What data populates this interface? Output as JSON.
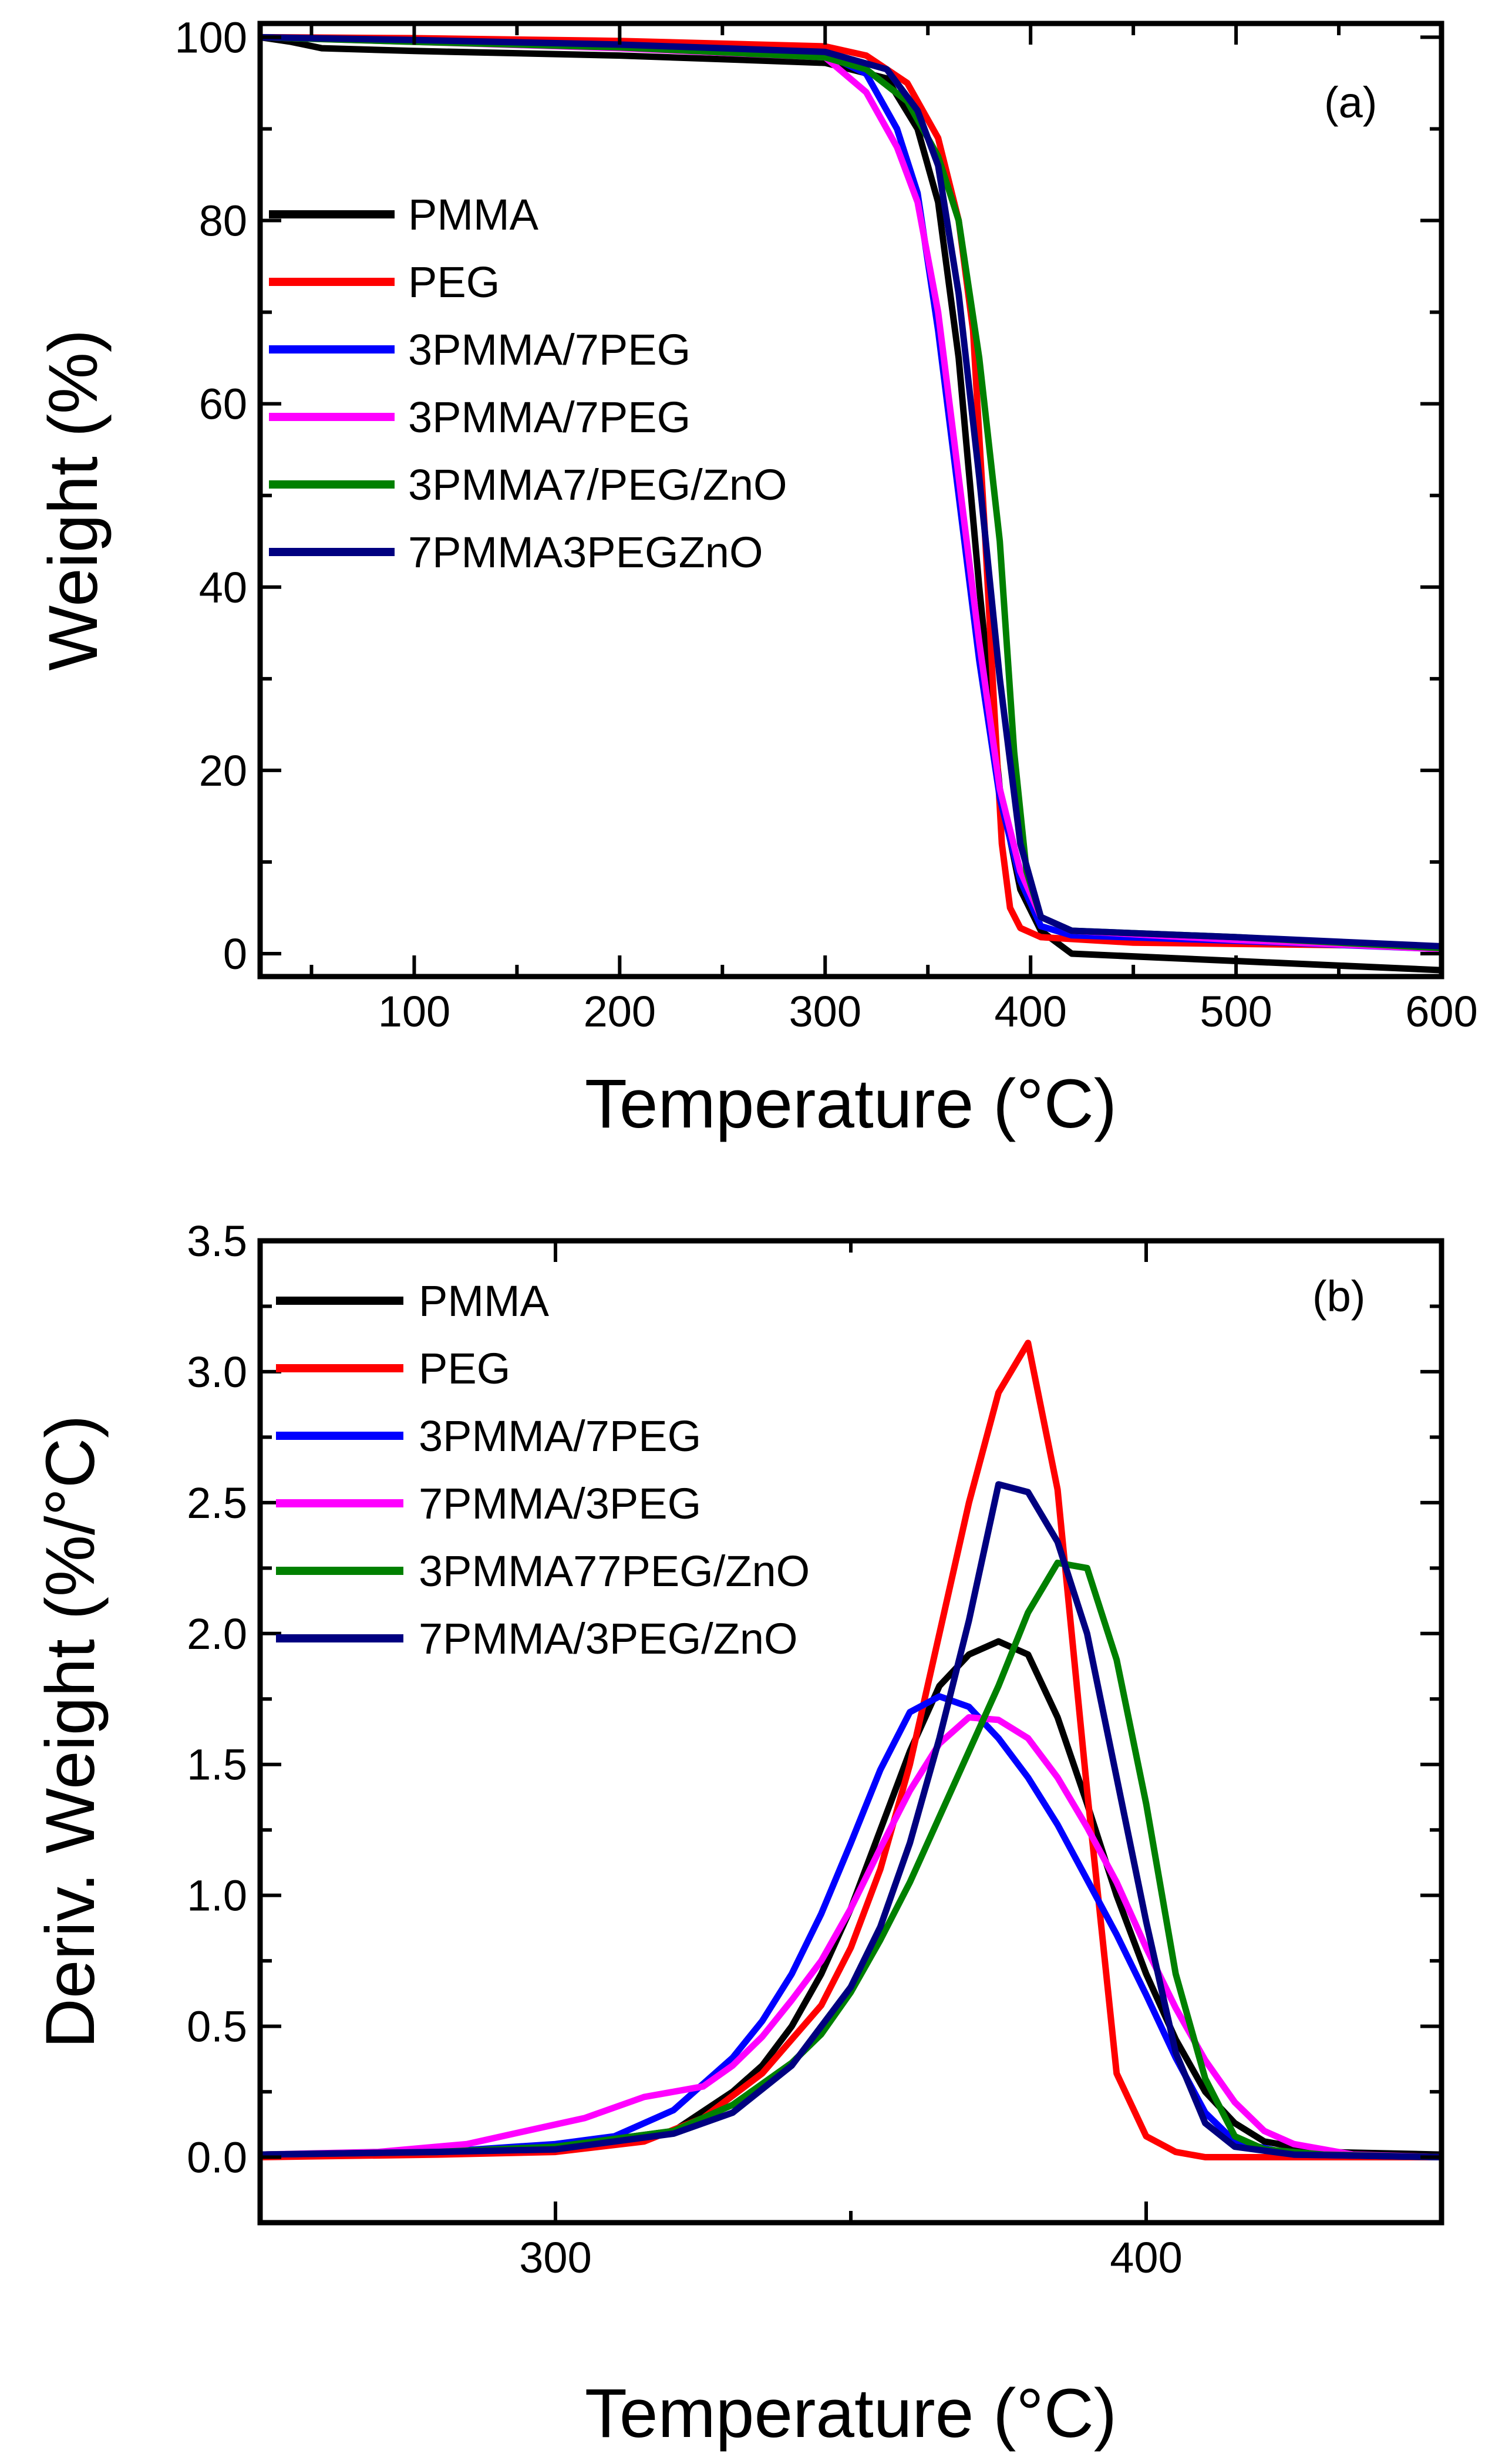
{
  "chart_data": [
    {
      "type": "line",
      "panel_label": "(a)",
      "xlabel": "Temperature (°C)",
      "ylabel": "Weight (%)",
      "xlim": [
        25,
        600
      ],
      "ylim": [
        -2.5,
        101.5
      ],
      "xticks": [
        100,
        200,
        300,
        400,
        500,
        600
      ],
      "xtick_labels": [
        "100",
        "200",
        "300",
        "400",
        "500",
        "600"
      ],
      "yticks": [
        0,
        20,
        40,
        60,
        80,
        100
      ],
      "ytick_labels": [
        "0",
        "20",
        "40",
        "60",
        "80",
        "100"
      ],
      "legend_position": "left",
      "series": [
        {
          "name": "PMMA",
          "color": "#000000",
          "points": [
            [
              25,
              100
            ],
            [
              40,
              99.5
            ],
            [
              55,
              98.8
            ],
            [
              100,
              98.5
            ],
            [
              200,
              98.0
            ],
            [
              300,
              97.2
            ],
            [
              330,
              95.5
            ],
            [
              345,
              90
            ],
            [
              355,
              82
            ],
            [
              365,
              65
            ],
            [
              375,
              40
            ],
            [
              385,
              18
            ],
            [
              395,
              7
            ],
            [
              405,
              2.5
            ],
            [
              420,
              0
            ],
            [
              500,
              -0.8
            ],
            [
              600,
              -1.8
            ]
          ]
        },
        {
          "name": "PEG",
          "color": "#ff0000",
          "points": [
            [
              25,
              100
            ],
            [
              100,
              99.9
            ],
            [
              200,
              99.6
            ],
            [
              300,
              99.0
            ],
            [
              320,
              98
            ],
            [
              340,
              95
            ],
            [
              355,
              89
            ],
            [
              365,
              80
            ],
            [
              372,
              68
            ],
            [
              378,
              45
            ],
            [
              382,
              28
            ],
            [
              386,
              12
            ],
            [
              390,
              5
            ],
            [
              395,
              2.8
            ],
            [
              405,
              1.8
            ],
            [
              450,
              1.2
            ],
            [
              600,
              0.8
            ]
          ]
        },
        {
          "name": "3PMMA/7PEG",
          "color": "#0000ff",
          "points": [
            [
              25,
              100
            ],
            [
              100,
              99.6
            ],
            [
              200,
              99.0
            ],
            [
              300,
              98.2
            ],
            [
              320,
              96
            ],
            [
              335,
              90
            ],
            [
              345,
              83
            ],
            [
              355,
              68
            ],
            [
              365,
              50
            ],
            [
              375,
              32
            ],
            [
              385,
              17
            ],
            [
              395,
              8
            ],
            [
              405,
              3
            ],
            [
              420,
              2
            ],
            [
              500,
              1.4
            ],
            [
              600,
              0.5
            ]
          ]
        },
        {
          "name": "3PMMA/7PEG",
          "color": "#ff00ff",
          "points": [
            [
              25,
              100
            ],
            [
              100,
              99.5
            ],
            [
              200,
              98.8
            ],
            [
              300,
              97.8
            ],
            [
              320,
              94
            ],
            [
              335,
              88
            ],
            [
              345,
              82
            ],
            [
              355,
              70
            ],
            [
              365,
              52
            ],
            [
              375,
              34
            ],
            [
              385,
              18
            ],
            [
              395,
              9
            ],
            [
              405,
              4
            ],
            [
              420,
              2.5
            ],
            [
              500,
              1.5
            ],
            [
              600,
              0.5
            ]
          ]
        },
        {
          "name": "3PMMA7/PEG/ZnO",
          "color": "#008000",
          "points": [
            [
              25,
              100
            ],
            [
              100,
              99.5
            ],
            [
              200,
              98.9
            ],
            [
              300,
              97.8
            ],
            [
              320,
              96.5
            ],
            [
              340,
              93
            ],
            [
              355,
              87
            ],
            [
              365,
              80
            ],
            [
              375,
              65
            ],
            [
              385,
              45
            ],
            [
              392,
              22
            ],
            [
              398,
              9
            ],
            [
              405,
              4
            ],
            [
              420,
              2.5
            ],
            [
              500,
              1.8
            ],
            [
              600,
              0.6
            ]
          ]
        },
        {
          "name": "7PMMA3PEGZnO",
          "color": "#000080",
          "points": [
            [
              25,
              100
            ],
            [
              100,
              99.7
            ],
            [
              200,
              99.2
            ],
            [
              300,
              98.4
            ],
            [
              330,
              96.5
            ],
            [
              345,
              92
            ],
            [
              355,
              86
            ],
            [
              365,
              72
            ],
            [
              375,
              52
            ],
            [
              385,
              30
            ],
            [
              395,
              12
            ],
            [
              405,
              4
            ],
            [
              420,
              2.5
            ],
            [
              500,
              1.8
            ],
            [
              600,
              0.8
            ]
          ]
        }
      ]
    },
    {
      "type": "line",
      "panel_label": "(b)",
      "xlabel": "Temperature (°C)",
      "ylabel": "Deriv. Weight (%/°C)",
      "xlim": [
        250,
        450
      ],
      "ylim": [
        -0.25,
        3.5
      ],
      "xticks": [
        300,
        400
      ],
      "xtick_labels": [
        "300",
        "400"
      ],
      "yticks": [
        0,
        0.5,
        1.0,
        1.5,
        2.0,
        2.5,
        3.0,
        3.5
      ],
      "ytick_labels": [
        "0.0",
        "0.5",
        "1.0",
        "1.5",
        "2.0",
        "2.5",
        "3.0",
        "3.5"
      ],
      "legend_position": "top-left",
      "series": [
        {
          "name": "PMMA",
          "color": "#000000",
          "points": [
            [
              250,
              0.01
            ],
            [
              280,
              0.02
            ],
            [
              300,
              0.04
            ],
            [
              320,
              0.1
            ],
            [
              330,
              0.25
            ],
            [
              335,
              0.35
            ],
            [
              340,
              0.5
            ],
            [
              345,
              0.7
            ],
            [
              350,
              0.95
            ],
            [
              355,
              1.25
            ],
            [
              360,
              1.55
            ],
            [
              365,
              1.8
            ],
            [
              370,
              1.92
            ],
            [
              375,
              1.97
            ],
            [
              380,
              1.92
            ],
            [
              385,
              1.68
            ],
            [
              390,
              1.35
            ],
            [
              395,
              1.0
            ],
            [
              400,
              0.7
            ],
            [
              405,
              0.45
            ],
            [
              410,
              0.25
            ],
            [
              415,
              0.13
            ],
            [
              420,
              0.06
            ],
            [
              430,
              0.02
            ],
            [
              450,
              0.01
            ]
          ]
        },
        {
          "name": "PEG",
          "color": "#ff0000",
          "points": [
            [
              250,
              0.0
            ],
            [
              280,
              0.01
            ],
            [
              300,
              0.02
            ],
            [
              315,
              0.06
            ],
            [
              325,
              0.15
            ],
            [
              335,
              0.32
            ],
            [
              345,
              0.58
            ],
            [
              350,
              0.8
            ],
            [
              355,
              1.1
            ],
            [
              360,
              1.5
            ],
            [
              365,
              2.0
            ],
            [
              370,
              2.5
            ],
            [
              375,
              2.92
            ],
            [
              380,
              3.11
            ],
            [
              385,
              2.55
            ],
            [
              390,
              1.4
            ],
            [
              395,
              0.32
            ],
            [
              400,
              0.08
            ],
            [
              405,
              0.02
            ],
            [
              410,
              0.0
            ],
            [
              450,
              0.0
            ]
          ]
        },
        {
          "name": "3PMMA/7PEG",
          "color": "#0000ff",
          "points": [
            [
              250,
              0.01
            ],
            [
              280,
              0.02
            ],
            [
              300,
              0.05
            ],
            [
              310,
              0.08
            ],
            [
              320,
              0.18
            ],
            [
              330,
              0.38
            ],
            [
              335,
              0.52
            ],
            [
              340,
              0.7
            ],
            [
              345,
              0.93
            ],
            [
              350,
              1.2
            ],
            [
              355,
              1.48
            ],
            [
              360,
              1.7
            ],
            [
              365,
              1.76
            ],
            [
              370,
              1.72
            ],
            [
              375,
              1.6
            ],
            [
              380,
              1.45
            ],
            [
              385,
              1.27
            ],
            [
              390,
              1.06
            ],
            [
              395,
              0.85
            ],
            [
              400,
              0.62
            ],
            [
              405,
              0.38
            ],
            [
              410,
              0.17
            ],
            [
              415,
              0.06
            ],
            [
              425,
              0.01
            ],
            [
              450,
              0.0
            ]
          ]
        },
        {
          "name": "7PMMA/3PEG",
          "color": "#ff00ff",
          "points": [
            [
              250,
              0.01
            ],
            [
              270,
              0.02
            ],
            [
              285,
              0.05
            ],
            [
              295,
              0.1
            ],
            [
              305,
              0.15
            ],
            [
              315,
              0.23
            ],
            [
              325,
              0.27
            ],
            [
              330,
              0.35
            ],
            [
              335,
              0.46
            ],
            [
              340,
              0.6
            ],
            [
              345,
              0.75
            ],
            [
              350,
              0.95
            ],
            [
              355,
              1.18
            ],
            [
              360,
              1.4
            ],
            [
              365,
              1.58
            ],
            [
              370,
              1.68
            ],
            [
              375,
              1.67
            ],
            [
              380,
              1.6
            ],
            [
              385,
              1.45
            ],
            [
              390,
              1.26
            ],
            [
              395,
              1.05
            ],
            [
              400,
              0.8
            ],
            [
              405,
              0.57
            ],
            [
              410,
              0.37
            ],
            [
              415,
              0.21
            ],
            [
              420,
              0.1
            ],
            [
              425,
              0.05
            ],
            [
              435,
              0.01
            ],
            [
              450,
              0.0
            ]
          ]
        },
        {
          "name": "3PMMA77PEG/ZnO",
          "color": "#008000",
          "points": [
            [
              250,
              0.01
            ],
            [
              280,
              0.02
            ],
            [
              300,
              0.04
            ],
            [
              320,
              0.1
            ],
            [
              330,
              0.2
            ],
            [
              340,
              0.36
            ],
            [
              345,
              0.47
            ],
            [
              350,
              0.63
            ],
            [
              355,
              0.83
            ],
            [
              360,
              1.05
            ],
            [
              365,
              1.3
            ],
            [
              370,
              1.55
            ],
            [
              375,
              1.8
            ],
            [
              380,
              2.08
            ],
            [
              385,
              2.27
            ],
            [
              390,
              2.25
            ],
            [
              395,
              1.9
            ],
            [
              400,
              1.35
            ],
            [
              405,
              0.7
            ],
            [
              410,
              0.3
            ],
            [
              415,
              0.08
            ],
            [
              420,
              0.03
            ],
            [
              430,
              0.01
            ],
            [
              450,
              0.0
            ]
          ]
        },
        {
          "name": "7PMMA/3PEG/ZnO",
          "color": "#000080",
          "points": [
            [
              250,
              0.01
            ],
            [
              280,
              0.02
            ],
            [
              300,
              0.03
            ],
            [
              320,
              0.09
            ],
            [
              330,
              0.17
            ],
            [
              340,
              0.35
            ],
            [
              345,
              0.5
            ],
            [
              350,
              0.65
            ],
            [
              355,
              0.88
            ],
            [
              360,
              1.2
            ],
            [
              365,
              1.6
            ],
            [
              370,
              2.05
            ],
            [
              375,
              2.57
            ],
            [
              380,
              2.54
            ],
            [
              385,
              2.35
            ],
            [
              390,
              2.0
            ],
            [
              395,
              1.45
            ],
            [
              400,
              0.9
            ],
            [
              405,
              0.4
            ],
            [
              410,
              0.13
            ],
            [
              415,
              0.04
            ],
            [
              425,
              0.01
            ],
            [
              450,
              0.0
            ]
          ]
        }
      ]
    }
  ]
}
